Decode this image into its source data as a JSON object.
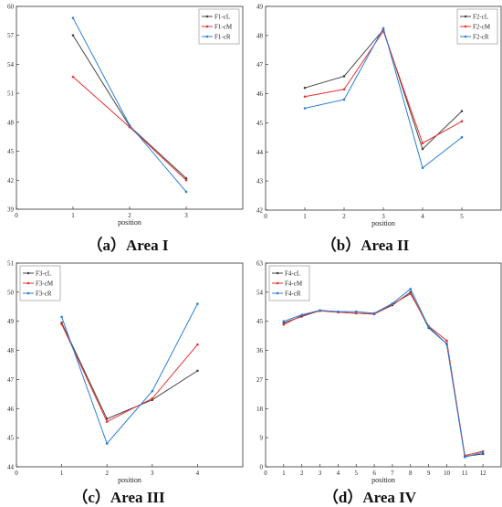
{
  "chart_data": [
    {
      "type": "line",
      "caption": "（a）Area I",
      "xlabel": "position",
      "ylabel": "",
      "xlim": [
        0,
        4
      ],
      "ylim": [
        39,
        60
      ],
      "x_ticks": [
        0,
        1,
        2,
        3
      ],
      "y_ticks": [
        39,
        42,
        45,
        48,
        51,
        54,
        57,
        60
      ],
      "x": [
        1,
        2,
        3
      ],
      "series": [
        {
          "name": "F1-cL",
          "color": "#444444",
          "values": [
            57.0,
            47.6,
            42.2
          ]
        },
        {
          "name": "F1-cM",
          "color": "#e8312f",
          "values": [
            52.7,
            47.5,
            42.0
          ]
        },
        {
          "name": "F1-cR",
          "color": "#2a7fd6",
          "values": [
            58.8,
            47.7,
            40.8
          ]
        }
      ],
      "legend": "top-right",
      "grid": false
    },
    {
      "type": "line",
      "caption": "（b）Area II",
      "xlabel": "position",
      "ylabel": "",
      "xlim": [
        0,
        6
      ],
      "ylim": [
        42,
        49
      ],
      "x_ticks": [
        0,
        1,
        2,
        3,
        4,
        5
      ],
      "y_ticks": [
        42,
        43,
        44,
        45,
        46,
        47,
        48,
        49
      ],
      "x": [
        1,
        2,
        3,
        4,
        5
      ],
      "series": [
        {
          "name": "F2-cL",
          "color": "#444444",
          "values": [
            46.2,
            46.6,
            48.2,
            44.1,
            45.4
          ]
        },
        {
          "name": "F2-cM",
          "color": "#e8312f",
          "values": [
            45.9,
            46.15,
            48.15,
            44.3,
            45.05
          ]
        },
        {
          "name": "F2-cR",
          "color": "#2a7fd6",
          "values": [
            45.5,
            45.8,
            48.25,
            43.45,
            44.5
          ]
        }
      ],
      "legend": "top-right",
      "grid": false
    },
    {
      "type": "line",
      "caption": "（c）Area III",
      "xlabel": "position",
      "ylabel": "",
      "xlim": [
        0,
        5
      ],
      "ylim": [
        44,
        51
      ],
      "x_ticks": [
        0,
        1,
        2,
        3,
        4
      ],
      "y_ticks": [
        44,
        45,
        46,
        47,
        48,
        49,
        50,
        51
      ],
      "x": [
        1,
        2,
        3,
        4
      ],
      "series": [
        {
          "name": "F3-cL",
          "color": "#444444",
          "values": [
            48.95,
            45.65,
            46.3,
            47.3
          ]
        },
        {
          "name": "F3-cM",
          "color": "#e8312f",
          "values": [
            48.9,
            45.55,
            46.35,
            48.2
          ]
        },
        {
          "name": "F3-cR",
          "color": "#2a7fd6",
          "values": [
            49.15,
            44.8,
            46.6,
            49.6
          ]
        }
      ],
      "legend": "top-left",
      "grid": false
    },
    {
      "type": "line",
      "caption": "（d）Area IV",
      "xlabel": "position",
      "ylabel": "",
      "xlim": [
        0,
        13
      ],
      "ylim": [
        0,
        63
      ],
      "x_ticks": [
        0,
        1,
        2,
        3,
        4,
        5,
        6,
        7,
        8,
        9,
        10,
        11,
        12
      ],
      "y_ticks": [
        0,
        9,
        18,
        27,
        36,
        45,
        54,
        63
      ],
      "x": [
        1,
        2,
        3,
        4,
        5,
        6,
        7,
        8,
        9,
        10,
        11,
        12
      ],
      "series": [
        {
          "name": "F4-cL",
          "color": "#444444",
          "values": [
            44.5,
            46.5,
            48.3,
            47.8,
            47.5,
            47.3,
            50.0,
            54.0,
            43.0,
            38.0,
            3.2,
            4.0
          ]
        },
        {
          "name": "F4-cM",
          "color": "#e8312f",
          "values": [
            44.0,
            46.8,
            48.2,
            47.8,
            47.5,
            47.2,
            50.3,
            53.5,
            43.5,
            39.0,
            3.5,
            4.8
          ]
        },
        {
          "name": "F4-cR",
          "color": "#2a7fd6",
          "values": [
            45.0,
            47.0,
            48.4,
            48.0,
            48.0,
            47.5,
            50.5,
            55.0,
            43.3,
            38.0,
            3.0,
            4.5
          ]
        }
      ],
      "legend": "top-left",
      "grid": false
    }
  ]
}
